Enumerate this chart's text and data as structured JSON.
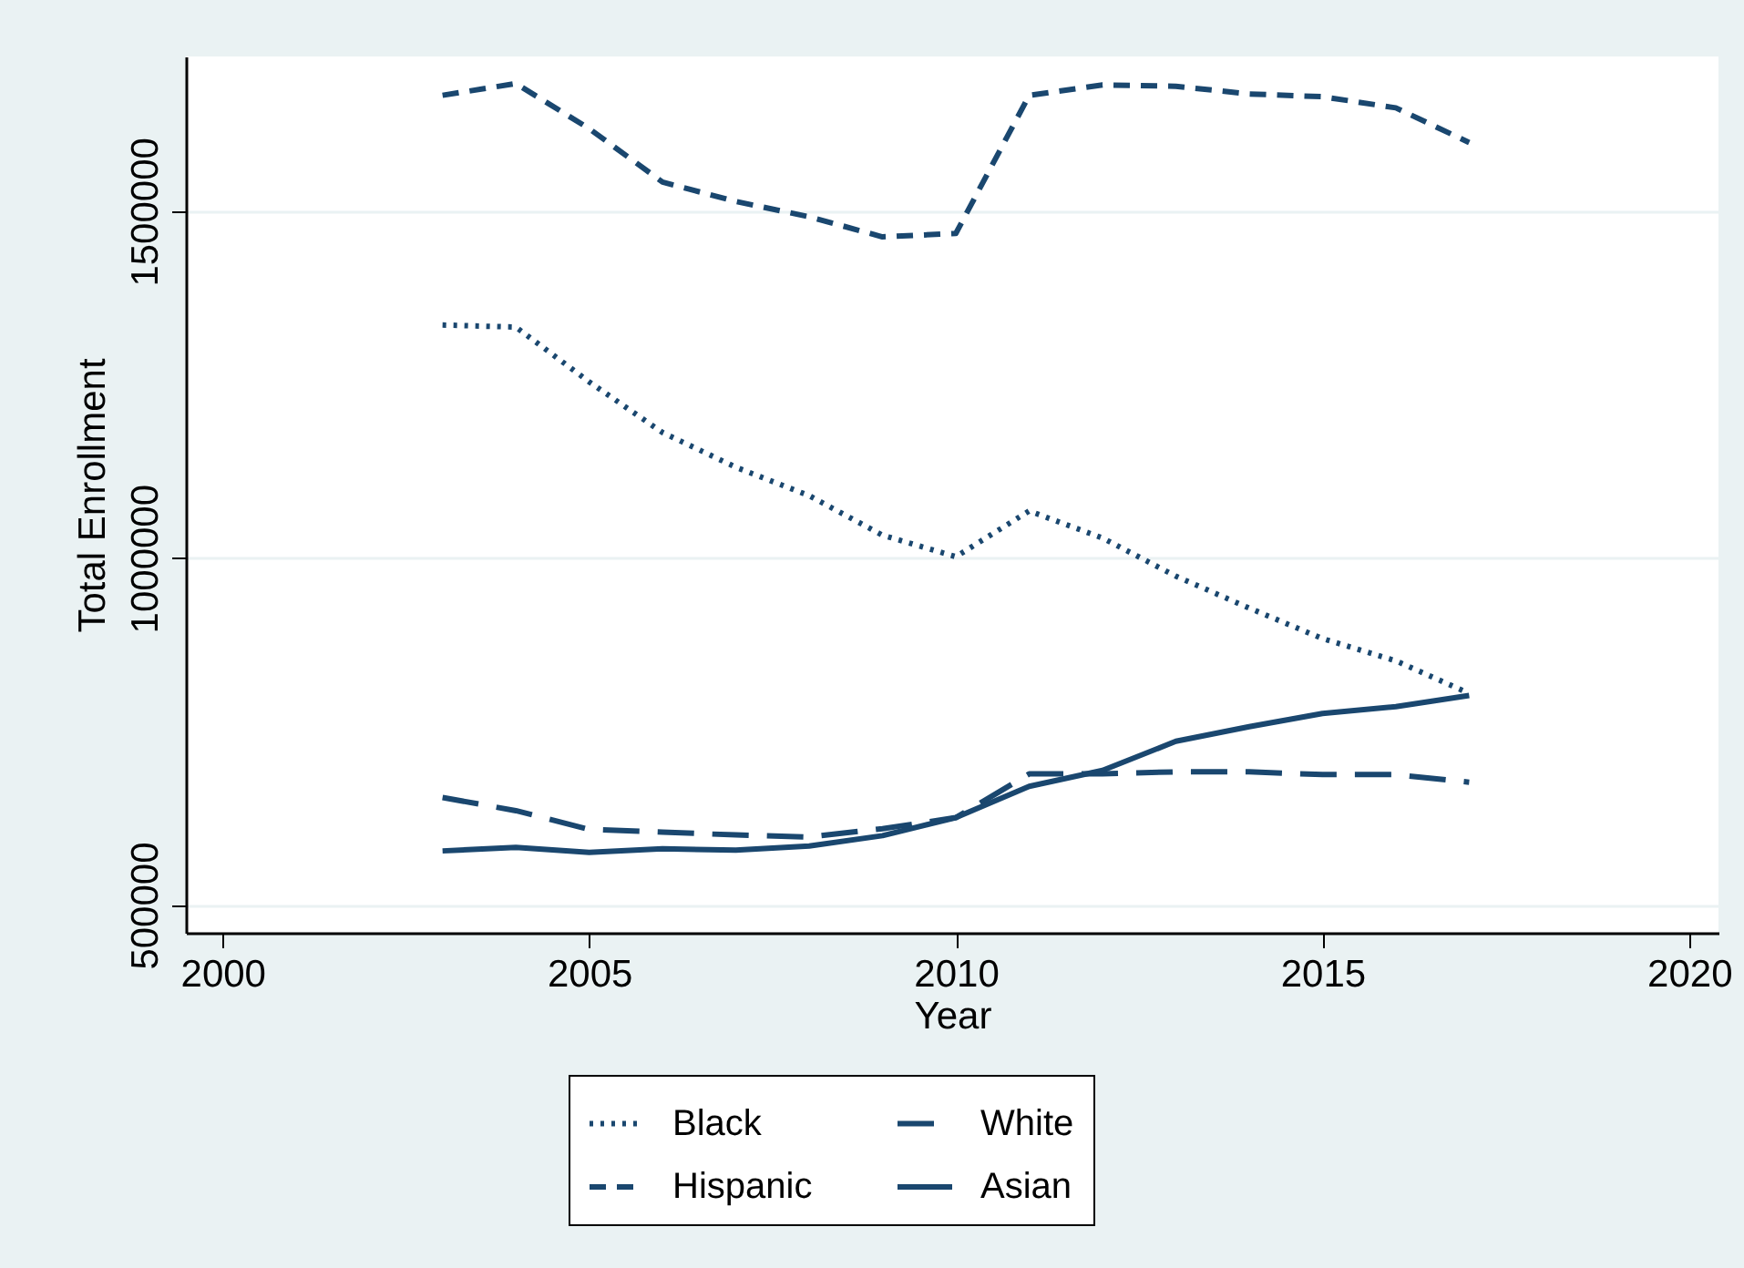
{
  "chart_data": {
    "type": "line",
    "xlabel": "Year",
    "ylabel": "Total Enrollment",
    "x": [
      2003,
      2004,
      2005,
      2006,
      2007,
      2008,
      2009,
      2010,
      2011,
      2012,
      2013,
      2014,
      2015,
      2016,
      2017
    ],
    "series": [
      {
        "name": "Black",
        "color": "#1a476f",
        "line_style": "dotted",
        "values": [
          1336000,
          1333000,
          1254000,
          1181000,
          1131000,
          1090000,
          1033000,
          1002000,
          1068000,
          1029000,
          974000,
          928000,
          884000,
          852000,
          805000
        ]
      },
      {
        "name": "Hispanic",
        "color": "#1a476f",
        "line_style": "dashed",
        "values": [
          1667000,
          1684000,
          1619000,
          1542000,
          1514000,
          1492000,
          1463000,
          1468000,
          1667000,
          1682000,
          1680000,
          1669000,
          1665000,
          1649000,
          1599000
        ]
      },
      {
        "name": "White",
        "color": "#1a476f",
        "line_style": "dashed",
        "values": [
          655000,
          636000,
          609000,
          605000,
          601000,
          598000,
          610000,
          626000,
          689000,
          689000,
          692000,
          692000,
          688000,
          688000,
          677000
        ]
      },
      {
        "name": "Asian",
        "color": "#1a476f",
        "line_style": "solid",
        "values": [
          578000,
          583000,
          576000,
          581000,
          579000,
          585000,
          600000,
          626000,
          671000,
          694000,
          736000,
          757000,
          776000,
          786000,
          802000
        ]
      }
    ],
    "xlim": [
      1999.5,
      2020.4
    ],
    "xticks": [
      2000,
      2005,
      2010,
      2015,
      2020
    ],
    "ylim": [
      460000,
      1723000
    ],
    "yticks": [
      500000,
      1000000,
      1500000
    ],
    "grid": "y",
    "legend": "bottom"
  }
}
